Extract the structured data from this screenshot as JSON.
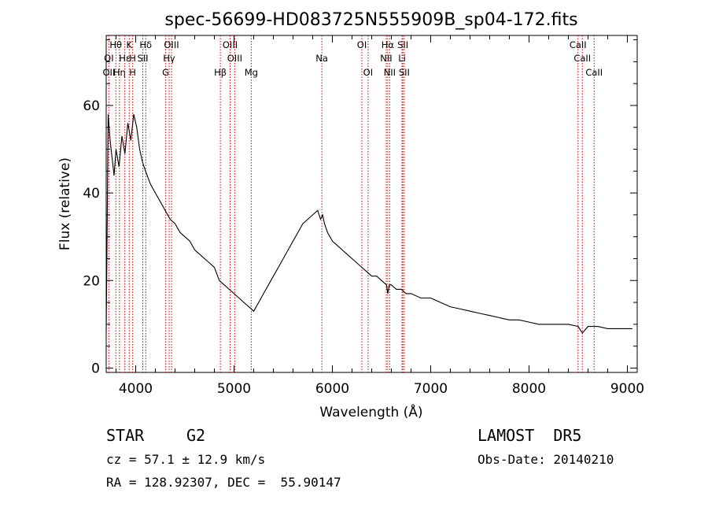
{
  "title": "spec-56699-HD083725N555909B_sp04-172.fits",
  "info": {
    "object_class": "STAR",
    "subclass": "G2",
    "survey": "LAMOST  DR5",
    "cz": "cz = 57.1 ± 12.9 km/s",
    "obs_date": "Obs-Date: 20140210",
    "coords": "RA = 128.92307, DEC =  55.90147"
  },
  "colors": {
    "spectrum": "#000000",
    "line_marker": "#cc0000",
    "axes": "#000000"
  },
  "chart_data": {
    "type": "line",
    "title": "spec-56699-HD083725N555909B_sp04-172.fits",
    "xlabel": "Wavelength (Å)",
    "ylabel": "Flux (relative)",
    "xlim": [
      3700,
      9100
    ],
    "ylim": [
      -1,
      76
    ],
    "xticks": [
      4000,
      5000,
      6000,
      7000,
      8000,
      9000
    ],
    "xtick_labels": [
      "4000",
      "5000",
      "6000",
      "7000",
      "8000",
      "9000"
    ],
    "yticks": [
      0,
      20,
      40,
      60
    ],
    "ytick_labels": [
      "0",
      "20",
      "40",
      "60"
    ],
    "grid": false,
    "series": [
      {
        "values_x": [
          3700,
          3720,
          3740,
          3760,
          3780,
          3800,
          3830,
          3860,
          3890,
          3920,
          3950,
          3980,
          4010,
          4040,
          4070,
          4100,
          4150,
          4200,
          4250,
          4300,
          4350,
          4400,
          4450,
          4500,
          4550,
          4600,
          4650,
          4700,
          4750,
          4800,
          4850,
          4900,
          4950,
          5000,
          5050,
          5100,
          5150,
          5200,
          5250,
          5300,
          5350,
          5400,
          5450,
          5500,
          5550,
          5600,
          5650,
          5700,
          5750,
          5800,
          5850,
          5880,
          5900,
          5920,
          5950,
          6000,
          6050,
          6100,
          6150,
          6200,
          6250,
          6300,
          6350,
          6400,
          6450,
          6500,
          6550,
          6563,
          6580,
          6600,
          6650,
          6700,
          6750,
          6800,
          6900,
          7000,
          7100,
          7200,
          7300,
          7400,
          7500,
          7600,
          7700,
          7800,
          7900,
          8000,
          8100,
          8200,
          8300,
          8400,
          8500,
          8542,
          8600,
          8700,
          8800,
          8900,
          9000,
          9050
        ],
        "values_y": [
          8,
          58,
          52,
          48,
          44,
          50,
          46,
          53,
          49,
          56,
          52,
          58,
          55,
          50,
          47,
          45,
          42,
          40,
          38,
          36,
          34,
          33,
          31,
          30,
          29,
          27,
          26,
          25,
          24,
          23,
          20,
          19,
          18,
          17,
          16,
          15,
          14,
          13,
          15,
          17,
          19,
          21,
          23,
          25,
          27,
          29,
          31,
          33,
          34,
          35,
          36,
          34,
          35,
          33,
          31,
          29,
          28,
          27,
          26,
          25,
          24,
          23,
          22,
          21,
          21,
          20,
          19,
          17,
          19,
          19,
          18,
          18,
          17,
          17,
          16,
          16,
          15,
          14,
          13.5,
          13,
          12.5,
          12,
          11.5,
          11,
          11,
          10.5,
          10,
          10,
          10,
          10,
          9.5,
          8,
          9.5,
          9.5,
          9,
          9,
          9,
          9
        ]
      }
    ],
    "lines_row1": [
      {
        "label": "Hθ",
        "x": 3798
      },
      {
        "label": "K",
        "x": 3934
      },
      {
        "label": "Hδ",
        "x": 4102
      },
      {
        "label": "OIII",
        "x": 4364
      },
      {
        "label": "OIII",
        "x": 4960
      },
      {
        "label": "OI",
        "x": 6300
      },
      {
        "label": "Hα",
        "x": 6563
      },
      {
        "label": "SII",
        "x": 6717
      },
      {
        "label": "CaII",
        "x": 8498
      }
    ],
    "lines_row2": [
      {
        "label": "OI",
        "x": 3727
      },
      {
        "label": "Hε",
        "x": 3889
      },
      {
        "label": "H",
        "x": 3969
      },
      {
        "label": "SII",
        "x": 4072
      },
      {
        "label": "Hγ",
        "x": 4340
      },
      {
        "label": "OIII",
        "x": 5007
      },
      {
        "label": "Na",
        "x": 5893
      },
      {
        "label": "NII",
        "x": 6548
      },
      {
        "label": "Li",
        "x": 6708
      },
      {
        "label": "CaII",
        "x": 8542
      }
    ],
    "lines_row3": [
      {
        "label": "OII",
        "x": 3727
      },
      {
        "label": "Hη",
        "x": 3835
      },
      {
        "label": "H",
        "x": 3969
      },
      {
        "label": "G",
        "x": 4305
      },
      {
        "label": "Hβ",
        "x": 4861
      },
      {
        "label": "Mg",
        "x": 5175
      },
      {
        "label": "OI",
        "x": 6363
      },
      {
        "label": "NII",
        "x": 6583
      },
      {
        "label": "SII",
        "x": 6731
      },
      {
        "label": "CaII",
        "x": 8662
      }
    ]
  }
}
